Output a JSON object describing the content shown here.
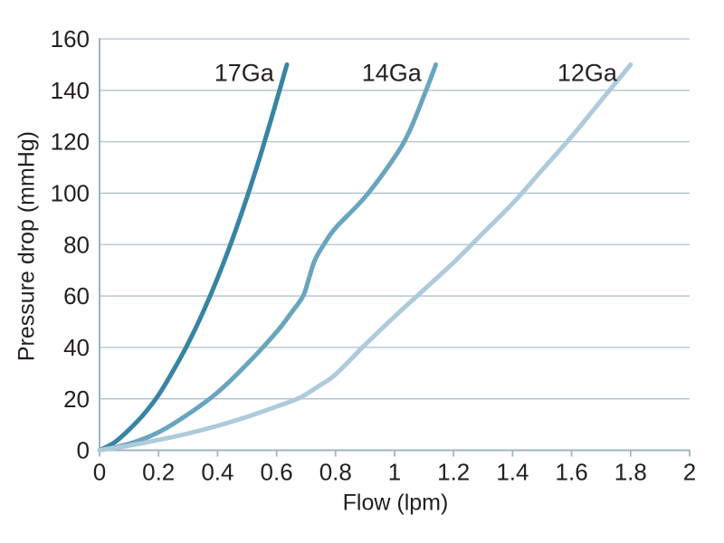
{
  "chart_data": {
    "type": "line",
    "title": "",
    "xlabel": "Flow (lpm)",
    "ylabel": "Pressure drop (mmHg)",
    "xlim": [
      0,
      2
    ],
    "ylim": [
      0,
      160
    ],
    "grid": "horizontal",
    "legend_position": "inline-curve-labels",
    "x_tick_values": [
      0,
      0.2,
      0.4,
      0.6,
      0.8,
      1,
      1.2,
      1.4,
      1.6,
      1.8,
      2
    ],
    "x_tick_labels": [
      "0",
      "0.2",
      "0.4",
      "0.6",
      "0.8",
      "1",
      "1.2",
      "1.4",
      "1.6",
      "1.8",
      "2"
    ],
    "y_tick_values": [
      0,
      20,
      40,
      60,
      80,
      100,
      120,
      140,
      160
    ],
    "y_tick_labels": [
      "0",
      "20",
      "40",
      "60",
      "80",
      "100",
      "120",
      "140",
      "160"
    ],
    "series": [
      {
        "name": "17Ga",
        "color": "#3884a2",
        "label_x": 0.49,
        "label_y": 147,
        "points": [
          [
            0,
            0
          ],
          [
            0.05,
            3
          ],
          [
            0.1,
            8
          ],
          [
            0.15,
            14
          ],
          [
            0.2,
            21.5
          ],
          [
            0.25,
            31
          ],
          [
            0.3,
            41.5
          ],
          [
            0.35,
            53.5
          ],
          [
            0.4,
            67
          ],
          [
            0.45,
            82
          ],
          [
            0.5,
            98.5
          ],
          [
            0.55,
            116.5
          ],
          [
            0.6,
            136
          ],
          [
            0.635,
            150
          ]
        ]
      },
      {
        "name": "14Ga",
        "color": "#69a5be",
        "label_x": 0.99,
        "label_y": 147,
        "points": [
          [
            0,
            0
          ],
          [
            0.1,
            2.5
          ],
          [
            0.2,
            7
          ],
          [
            0.3,
            14
          ],
          [
            0.4,
            22.5
          ],
          [
            0.5,
            33.5
          ],
          [
            0.6,
            46
          ],
          [
            0.65,
            53.5
          ],
          [
            0.69,
            60
          ],
          [
            0.71,
            67
          ],
          [
            0.73,
            74
          ],
          [
            0.76,
            80
          ],
          [
            0.8,
            86.5
          ],
          [
            0.9,
            98.5
          ],
          [
            1.0,
            114
          ],
          [
            1.05,
            124
          ],
          [
            1.1,
            138
          ],
          [
            1.14,
            150
          ]
        ]
      },
      {
        "name": "12Ga",
        "color": "#aecbdb",
        "label_x": 1.653,
        "label_y": 147,
        "points": [
          [
            0,
            0
          ],
          [
            0.1,
            1.8
          ],
          [
            0.2,
            4
          ],
          [
            0.3,
            6.5
          ],
          [
            0.4,
            9.5
          ],
          [
            0.5,
            13
          ],
          [
            0.6,
            17
          ],
          [
            0.68,
            20.5
          ],
          [
            0.75,
            25.5
          ],
          [
            0.8,
            29.5
          ],
          [
            0.9,
            41
          ],
          [
            1.0,
            52
          ],
          [
            1.1,
            62.5
          ],
          [
            1.2,
            73
          ],
          [
            1.3,
            84.5
          ],
          [
            1.4,
            96
          ],
          [
            1.5,
            109
          ],
          [
            1.6,
            122
          ],
          [
            1.7,
            136
          ],
          [
            1.8,
            150
          ]
        ]
      }
    ]
  },
  "styles": {
    "background": "#ffffff",
    "grid_color": "#b2c1cb",
    "axis_color": "#9fb4c0",
    "text_color": "#231f20"
  }
}
